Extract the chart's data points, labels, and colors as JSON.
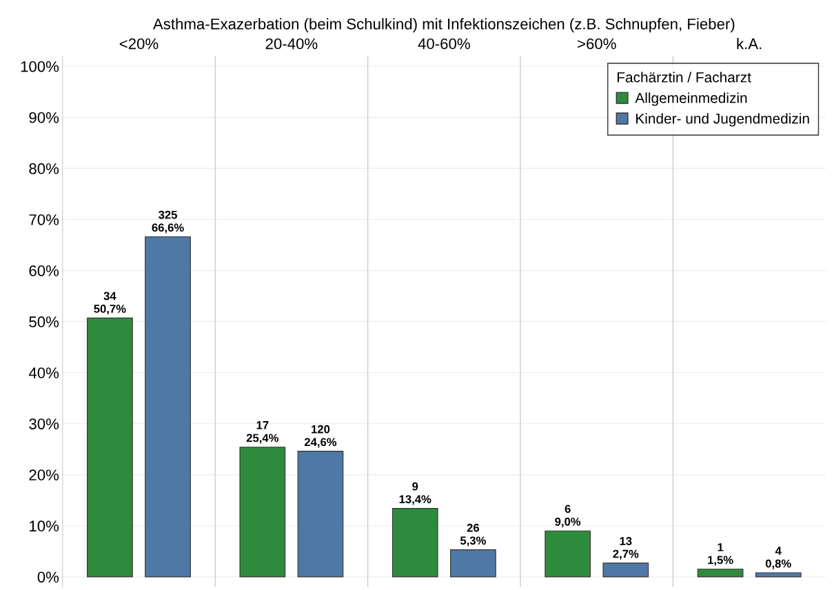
{
  "chart_data": {
    "type": "bar",
    "title": "Asthma-Exazerbation (beim Schulkind) mit Infektionszeichen (z.B. Schnupfen, Fieber)",
    "categories": [
      "<20%",
      "20-40%",
      "40-60%",
      ">60%",
      "k.A."
    ],
    "legend_title": "Fachärztin / Facharzt",
    "series": [
      {
        "name": "Allgemeinmedizin",
        "color": "#2e8b3e",
        "values": [
          50.7,
          25.4,
          13.4,
          9.0,
          1.5
        ],
        "value_labels": [
          "34\n50,7%",
          "17\n25,4%",
          "9\n13,4%",
          "6\n9,0%",
          "1\n1,5%"
        ]
      },
      {
        "name": "Kinder- und Jugendmedizin",
        "color": "#4e79a7",
        "values": [
          66.6,
          24.6,
          5.3,
          2.7,
          0.8
        ],
        "value_labels": [
          "325\n66,6%",
          "120\n24,6%",
          "26\n5,3%",
          "13\n2,7%",
          "4\n0,8%"
        ]
      }
    ],
    "ylim": [
      -2,
      102
    ],
    "yticks": [
      {
        "value": 0,
        "label": "0%"
      },
      {
        "value": 10,
        "label": "10%"
      },
      {
        "value": 20,
        "label": "20%"
      },
      {
        "value": 30,
        "label": "30%"
      },
      {
        "value": 40,
        "label": "40%"
      },
      {
        "value": 50,
        "label": "50%"
      },
      {
        "value": 60,
        "label": "60%"
      },
      {
        "value": 70,
        "label": "70%"
      },
      {
        "value": 80,
        "label": "80%"
      },
      {
        "value": 90,
        "label": "90%"
      },
      {
        "value": 100,
        "label": "100%"
      }
    ],
    "grid": true,
    "legend": "top right"
  }
}
